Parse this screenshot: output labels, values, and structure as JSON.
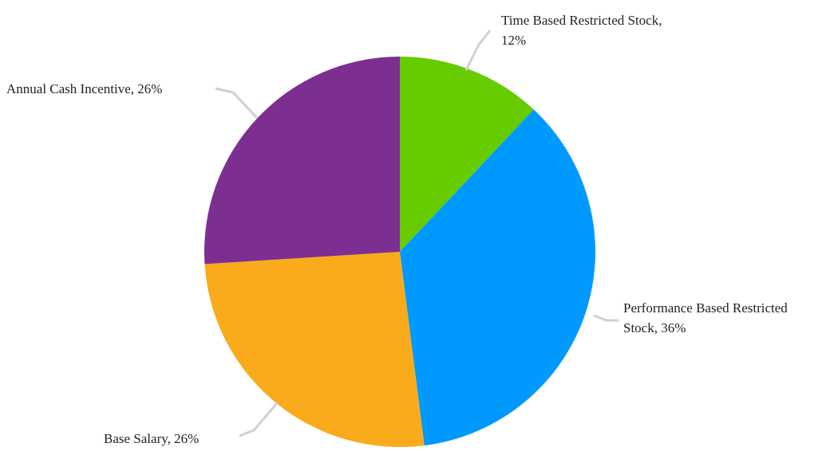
{
  "chart_data": {
    "type": "pie",
    "title": "",
    "start_angle_deg": 0,
    "direction": "clockwise",
    "slices": [
      {
        "name": "Time Based Restricted Stock",
        "value": 12,
        "label_lines": [
          "Time Based Restricted Stock,",
          "12%"
        ],
        "color": "#66CC00"
      },
      {
        "name": "Performance Based Restricted Stock",
        "value": 36,
        "label_lines": [
          "Performance Based Restricted",
          "Stock, 36%"
        ],
        "color": "#0099FF"
      },
      {
        "name": "Base Salary",
        "value": 26,
        "label_lines": [
          "Base Salary, 26%"
        ],
        "color": "#F9AB1B"
      },
      {
        "name": "Annual Cash Incentive",
        "value": 26,
        "label_lines": [
          "Annual Cash Incentive, 26%"
        ],
        "color": "#7D2F91"
      }
    ],
    "leader_line_color": "#D0D0D0"
  }
}
